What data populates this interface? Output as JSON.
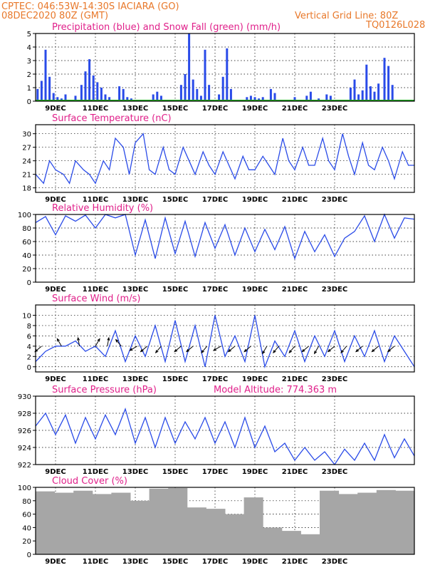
{
  "header": {
    "line1_left": "CPTEC:   046:53W-14:30S   IACIARA (GO)",
    "line2_left": "08DEC2020 80Z (GMT)",
    "line2_right": "Vertical Grid Line: 80Z",
    "line3_right": "TQ0126L028"
  },
  "colors": {
    "header": "#e8782a",
    "title": "#e0208a",
    "series": "#2a4be8",
    "snow": "#22aa22",
    "cloud": "#a6a6a6"
  },
  "x_axis": {
    "tick_labels": [
      "9DEC",
      "11DEC",
      "13DEC",
      "15DEC",
      "17DEC",
      "19DEC",
      "21DEC",
      "23DEC"
    ],
    "start": "08DEC2020 08Z",
    "end": "23DEC2020 00Z"
  },
  "chart_data": [
    {
      "id": "precip",
      "type": "bar",
      "title": "Precipitation (blue) and Snow Fall (green) (mm/h)",
      "ylim": [
        0,
        5
      ],
      "yticks": [
        "0",
        "1",
        "2",
        "3",
        "4",
        "5"
      ],
      "snow": 0,
      "x_day_offsets": [
        0.1,
        0.3,
        0.5,
        0.7,
        0.9,
        1.1,
        1.3,
        1.5,
        2.0,
        2.3,
        2.5,
        2.7,
        2.9,
        3.1,
        3.3,
        3.5,
        3.7,
        4.2,
        4.4,
        4.6,
        4.8,
        5.9,
        6.1,
        6.3,
        7.3,
        7.5,
        7.7,
        7.9,
        8.1,
        8.3,
        8.5,
        8.7,
        9.2,
        9.4,
        9.6,
        9.8,
        10.6,
        10.8,
        11.0,
        11.2,
        11.4,
        11.8,
        12.0,
        13.0,
        13.6,
        13.8,
        14.2,
        14.6,
        14.8,
        15.8,
        16.0,
        16.2,
        16.4,
        16.6,
        16.8,
        17.0,
        17.2,
        17.5,
        17.7,
        17.9
      ],
      "values": [
        0.9,
        1.5,
        3.8,
        1.8,
        0.6,
        0.3,
        0.2,
        0.5,
        0.4,
        1.2,
        2.2,
        3.1,
        1.9,
        1.4,
        1.0,
        0.5,
        0.3,
        1.1,
        0.9,
        0.3,
        0.2,
        0.5,
        0.7,
        0.4,
        1.2,
        2.0,
        5.0,
        1.6,
        0.9,
        0.4,
        3.8,
        1.2,
        0.5,
        1.8,
        3.9,
        0.9,
        0.3,
        0.4,
        0.3,
        0.2,
        0.3,
        0.9,
        0.6,
        0.3,
        0.4,
        0.7,
        0.2,
        0.5,
        0.4,
        1.0,
        1.6,
        0.5,
        0.8,
        2.7,
        1.1,
        0.7,
        1.3,
        3.2,
        2.6,
        1.2
      ],
      "style": "blue bars",
      "grid": true
    },
    {
      "id": "temp",
      "type": "line",
      "title": "Surface Temperature (nC)",
      "ylim": [
        17,
        32
      ],
      "yticks": [
        "18",
        "21",
        "24",
        "27",
        "30"
      ],
      "x_days": [
        0,
        0.4,
        0.7,
        1.0,
        1.4,
        1.7,
        2.0,
        2.4,
        2.7,
        3.0,
        3.4,
        3.7,
        4.0,
        4.4,
        4.7,
        5.0,
        5.4,
        5.7,
        6.0,
        6.4,
        6.7,
        7.0,
        7.4,
        7.7,
        8.0,
        8.4,
        8.7,
        9.0,
        9.4,
        9.7,
        10.0,
        10.4,
        10.7,
        11.0,
        11.4,
        11.7,
        12.0,
        12.4,
        12.7,
        13.0,
        13.4,
        13.7,
        14.0,
        14.4,
        14.7,
        15.0,
        15.4,
        15.7,
        16.0,
        16.4,
        16.7,
        17.0,
        17.4,
        17.7,
        18.0,
        18.4,
        18.7,
        19.0
      ],
      "values": [
        21,
        19,
        24,
        22,
        21,
        19,
        24,
        22,
        21,
        19,
        24,
        22,
        29,
        27,
        21,
        28,
        30,
        22,
        21,
        27,
        22,
        21,
        27,
        24,
        21,
        26,
        23,
        21,
        26,
        23,
        20,
        25,
        22,
        22,
        25,
        23,
        21,
        29,
        24,
        22,
        27,
        23,
        23,
        29,
        24,
        22,
        30,
        25,
        21,
        28,
        23,
        22,
        27,
        24,
        20,
        26,
        23,
        23
      ],
      "grid": true
    },
    {
      "id": "rh",
      "type": "line",
      "title": "Relative Humidity (%)",
      "ylim": [
        0,
        100
      ],
      "yticks": [
        "0",
        "20",
        "40",
        "60",
        "80",
        "100"
      ],
      "x_days": [
        0,
        0.5,
        1.0,
        1.5,
        2.0,
        2.5,
        3.0,
        3.5,
        4.0,
        4.5,
        5.0,
        5.5,
        6.0,
        6.5,
        7.0,
        7.5,
        8.0,
        8.5,
        9.0,
        9.5,
        10.0,
        10.5,
        11.0,
        11.5,
        12.0,
        12.5,
        13.0,
        13.5,
        14.0,
        14.5,
        15.0,
        15.5,
        16.0,
        16.5,
        17.0,
        17.5,
        18.0,
        18.5,
        19.0
      ],
      "values": [
        88,
        97,
        70,
        98,
        90,
        99,
        80,
        100,
        95,
        100,
        40,
        92,
        35,
        95,
        42,
        90,
        38,
        88,
        50,
        85,
        40,
        80,
        45,
        78,
        48,
        82,
        35,
        75,
        45,
        70,
        38,
        65,
        75,
        98,
        60,
        100,
        65,
        95,
        93
      ],
      "grid": true
    },
    {
      "id": "wind",
      "type": "line",
      "title": "Surface Wind (m/s)",
      "ylim": [
        -1,
        12
      ],
      "yticks": [
        "0",
        "2",
        "4",
        "6",
        "8",
        "10"
      ],
      "x_days": [
        0,
        0.5,
        1.0,
        1.5,
        2.0,
        2.5,
        3.0,
        3.5,
        4.0,
        4.5,
        5.0,
        5.5,
        6.0,
        6.5,
        7.0,
        7.5,
        8.0,
        8.5,
        9.0,
        9.5,
        10.0,
        10.5,
        11.0,
        11.5,
        12.0,
        12.5,
        13.0,
        13.5,
        14.0,
        14.5,
        15.0,
        15.5,
        16.0,
        16.5,
        17.0,
        17.5,
        18.0,
        18.5,
        19.0
      ],
      "values": [
        1,
        3,
        4,
        4,
        5,
        3,
        4,
        2,
        7,
        1,
        6,
        2,
        8,
        1,
        9,
        1,
        8,
        0,
        10,
        2,
        6,
        1,
        10,
        0,
        5,
        2,
        7,
        1,
        6,
        2,
        7,
        1,
        6,
        2,
        7,
        1,
        6,
        3,
        0
      ],
      "barbs": [
        {
          "x": 0.3,
          "a": -140
        },
        {
          "x": 1.3,
          "a": 120
        },
        {
          "x": 2.2,
          "a": 100
        },
        {
          "x": 3.0,
          "a": 60
        },
        {
          "x": 3.6,
          "a": 80
        },
        {
          "x": 4.3,
          "a": 130
        },
        {
          "x": 5.1,
          "a": 210
        },
        {
          "x": 5.6,
          "a": 220
        },
        {
          "x": 6.3,
          "a": 230
        },
        {
          "x": 7.3,
          "a": 220
        },
        {
          "x": 7.9,
          "a": 220
        },
        {
          "x": 8.6,
          "a": 230
        },
        {
          "x": 9.3,
          "a": 210
        },
        {
          "x": 10.0,
          "a": 220
        },
        {
          "x": 10.8,
          "a": 220
        },
        {
          "x": 11.6,
          "a": 240
        },
        {
          "x": 12.2,
          "a": 230
        },
        {
          "x": 13.0,
          "a": 230
        },
        {
          "x": 13.7,
          "a": 220
        },
        {
          "x": 14.2,
          "a": 240
        },
        {
          "x": 15.0,
          "a": 220
        },
        {
          "x": 15.6,
          "a": 230
        },
        {
          "x": 16.4,
          "a": 220
        },
        {
          "x": 17.2,
          "a": 220
        },
        {
          "x": 18.0,
          "a": 220
        }
      ],
      "grid": true
    },
    {
      "id": "pres",
      "type": "line",
      "title": "Surface Pressure (hPa)",
      "annotation": "Model Altitude: 774.363 m",
      "ylim": [
        922,
        930
      ],
      "yticks": [
        "922",
        "924",
        "926",
        "928",
        "930"
      ],
      "x_days": [
        0,
        0.5,
        1.0,
        1.5,
        2.0,
        2.5,
        3.0,
        3.5,
        4.0,
        4.5,
        5.0,
        5.5,
        6.0,
        6.5,
        7.0,
        7.5,
        8.0,
        8.5,
        9.0,
        9.5,
        10.0,
        10.5,
        11.0,
        11.5,
        12.0,
        12.5,
        13.0,
        13.5,
        14.0,
        14.5,
        15.0,
        15.5,
        16.0,
        16.5,
        17.0,
        17.5,
        18.0,
        18.5,
        19.0
      ],
      "values": [
        926.5,
        928,
        925.5,
        927.8,
        924.5,
        927.5,
        925.0,
        927.8,
        925.5,
        928.5,
        924.5,
        927.5,
        924.0,
        927.5,
        924.5,
        927.0,
        925.0,
        927.5,
        924.5,
        927.0,
        924.0,
        927.5,
        924.0,
        926.5,
        923.5,
        924.5,
        922.5,
        924.0,
        922.5,
        923.5,
        922.0,
        923.8,
        922.5,
        924.5,
        922.5,
        925.5,
        922.8,
        925.0,
        923.0
      ],
      "grid": true
    },
    {
      "id": "cloud",
      "type": "bar",
      "title": "Cloud Cover (%)",
      "ylim": [
        0,
        100
      ],
      "yticks": [
        "0",
        "20",
        "40",
        "60",
        "80",
        "100"
      ],
      "x_day_offsets": [
        0,
        1,
        2,
        3,
        4,
        5,
        6,
        7,
        8,
        9,
        10,
        11,
        12,
        13,
        14,
        15,
        16,
        17,
        18,
        19
      ],
      "values": [
        94,
        92,
        95,
        90,
        92,
        80,
        98,
        99,
        70,
        68,
        60,
        85,
        40,
        35,
        30,
        95,
        90,
        92,
        96,
        95
      ],
      "style": "gray bars",
      "grid": true
    }
  ]
}
